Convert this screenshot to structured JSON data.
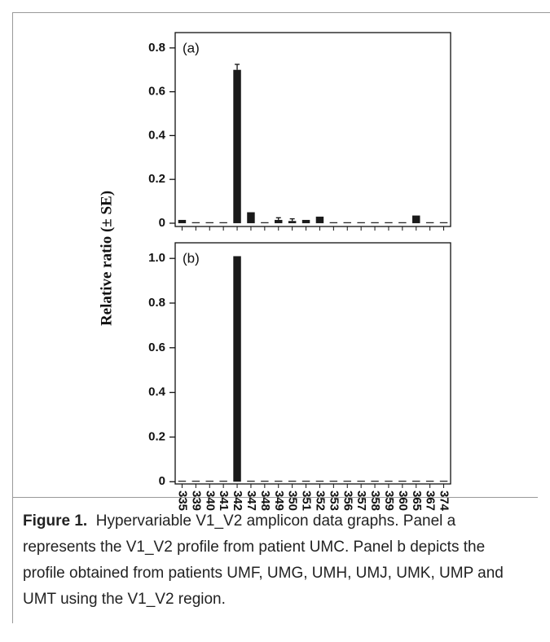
{
  "chart_data": [
    {
      "type": "bar",
      "annotation": "(a)",
      "ylabel": "Relative ratio (± SE)",
      "values": [
        0.015,
        0,
        0,
        0,
        0.7,
        0.05,
        0,
        0.015,
        0.01,
        0.015,
        0.03,
        0,
        0,
        0,
        0,
        0,
        0,
        0.035,
        0,
        0
      ],
      "errors": [
        0,
        0,
        0,
        0,
        0.025,
        0,
        0,
        0.01,
        0.01,
        0,
        0,
        0,
        0,
        0,
        0,
        0,
        0,
        0,
        0,
        0
      ],
      "color": "#1a1a1a",
      "ylim": [
        -0.015,
        0.87
      ],
      "yticks": [
        0,
        0.2,
        0.4,
        0.6,
        0.8
      ]
    },
    {
      "type": "bar",
      "annotation": "(b)",
      "categories": [
        "335",
        "339",
        "340",
        "341",
        "342",
        "347",
        "348",
        "349",
        "350",
        "351",
        "352",
        "353",
        "356",
        "357",
        "358",
        "359",
        "360",
        "365",
        "367",
        "374"
      ],
      "values": [
        0,
        0,
        0,
        0,
        1.01,
        0,
        0,
        0,
        0,
        0,
        0,
        0,
        0,
        0,
        0,
        0,
        0,
        0,
        0,
        0
      ],
      "color": "#1a1a1a",
      "ylim": [
        -0.01,
        1.07
      ],
      "yticks": [
        0,
        0.2,
        0.4,
        0.6,
        0.8,
        {
          "value": 1,
          "label": "1.0"
        }
      ]
    }
  ],
  "caption": {
    "label": "Figure 1.",
    "text": "Hypervariable V1_V2 amplicon data graphs. Panel a represents the V1_V2 profile from patient UMC. Panel b depicts the profile obtained from patients UMF, UMG, UMH, UMJ, UMK, UMP and UMT using the V1_V2 region."
  }
}
